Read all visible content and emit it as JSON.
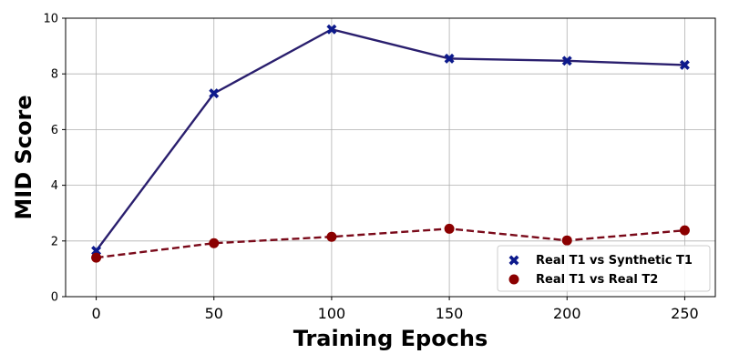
{
  "chart_data": {
    "type": "line",
    "xlabel": "Training Epochs",
    "ylabel": "MID Score",
    "x": [
      0,
      50,
      100,
      150,
      200,
      250
    ],
    "xlim": [
      -13,
      263
    ],
    "ylim": [
      0,
      10
    ],
    "xticks": [
      "0",
      "50",
      "100",
      "150",
      "200",
      "250"
    ],
    "yticks": [
      "0",
      "2",
      "4",
      "6",
      "8",
      "10"
    ],
    "grid": true,
    "legend_position": "bottom-right",
    "series": [
      {
        "name": "Real T1 vs Synthetic T1",
        "values": [
          1.65,
          7.3,
          9.6,
          8.55,
          8.47,
          8.32
        ],
        "color": "#0d1a8c",
        "line_color": "#2a1f6e",
        "line_style": "solid",
        "marker": "x"
      },
      {
        "name": "Real T1 vs Real T2",
        "values": [
          1.4,
          1.92,
          2.15,
          2.44,
          2.02,
          2.38
        ],
        "color": "#8b0000",
        "line_color": "#7a0a1a",
        "line_style": "dashed",
        "marker": "circle"
      }
    ]
  }
}
